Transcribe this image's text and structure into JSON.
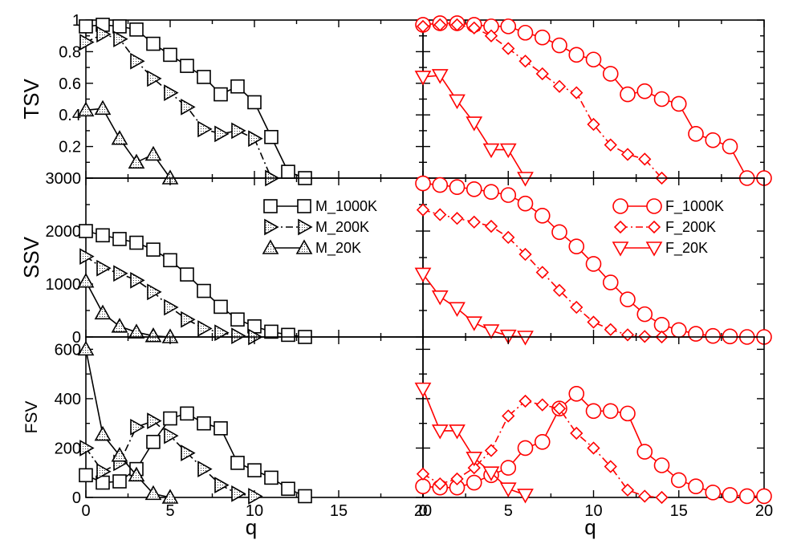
{
  "chart_data": [
    {
      "panel": "left-top",
      "type": "line",
      "ylabel": "TSV",
      "xlabel": "",
      "xlim": [
        0,
        20
      ],
      "ylim": [
        0,
        1
      ],
      "yticks": [
        "0.2",
        "0.4",
        "0.6",
        "0.8",
        "1"
      ],
      "xticks": [],
      "series": [
        {
          "name": "M_1000K",
          "marker": "square",
          "dash": "solid",
          "color": "#000000",
          "x": [
            0,
            1,
            2,
            3,
            4,
            5,
            6,
            7,
            8,
            9,
            10,
            11,
            12,
            13
          ],
          "y": [
            0.96,
            0.97,
            0.96,
            0.94,
            0.85,
            0.78,
            0.71,
            0.64,
            0.53,
            0.58,
            0.48,
            0.26,
            0.04,
            0.0
          ]
        },
        {
          "name": "M_200K",
          "marker": "triangle-right",
          "dash": "dashdot",
          "color": "#000000",
          "x": [
            0,
            1,
            2,
            3,
            4,
            5,
            6,
            7,
            8,
            9,
            10,
            11
          ],
          "y": [
            0.86,
            0.91,
            0.88,
            0.74,
            0.63,
            0.54,
            0.45,
            0.31,
            0.28,
            0.3,
            0.25,
            0.0
          ]
        },
        {
          "name": "M_20K",
          "marker": "triangle-up",
          "dash": "solid",
          "color": "#000000",
          "x": [
            0,
            1,
            2,
            3,
            4,
            5
          ],
          "y": [
            0.43,
            0.44,
            0.25,
            0.1,
            0.15,
            0.0
          ]
        }
      ]
    },
    {
      "panel": "right-top",
      "type": "line",
      "ylabel": "",
      "xlabel": "",
      "xlim": [
        0,
        20
      ],
      "ylim": [
        0,
        1
      ],
      "yticks": [],
      "xticks": [],
      "series": [
        {
          "name": "F_1000K",
          "marker": "circle",
          "dash": "solid",
          "color": "#ff0000",
          "x": [
            0,
            1,
            2,
            3,
            4,
            5,
            6,
            7,
            8,
            9,
            10,
            11,
            12,
            13,
            14,
            15,
            16,
            17,
            18,
            19,
            20
          ],
          "y": [
            0.97,
            0.98,
            0.98,
            0.97,
            0.96,
            0.96,
            0.92,
            0.89,
            0.84,
            0.78,
            0.75,
            0.66,
            0.53,
            0.55,
            0.5,
            0.47,
            0.28,
            0.24,
            0.2,
            0.0,
            0.0
          ]
        },
        {
          "name": "F_200K",
          "marker": "diamond",
          "dash": "dashdot",
          "color": "#ff0000",
          "x": [
            0,
            1,
            2,
            3,
            4,
            5,
            6,
            7,
            8,
            9,
            10,
            11,
            12,
            13,
            14
          ],
          "y": [
            0.96,
            0.97,
            0.97,
            0.95,
            0.9,
            0.82,
            0.74,
            0.66,
            0.58,
            0.54,
            0.34,
            0.21,
            0.15,
            0.12,
            0.0
          ]
        },
        {
          "name": "F_20K",
          "marker": "triangle-down",
          "dash": "solid",
          "color": "#ff0000",
          "x": [
            0,
            1,
            2,
            3,
            4,
            5,
            6
          ],
          "y": [
            0.64,
            0.65,
            0.49,
            0.35,
            0.18,
            0.18,
            0.0
          ]
        }
      ]
    },
    {
      "panel": "left-middle",
      "type": "line",
      "ylabel": "SSV",
      "xlabel": "",
      "xlim": [
        0,
        20
      ],
      "ylim": [
        0,
        3000
      ],
      "yticks": [
        "0",
        "1000",
        "2000",
        "3000"
      ],
      "xticks": [],
      "series": [
        {
          "name": "M_1000K",
          "marker": "square",
          "dash": "solid",
          "color": "#000000",
          "x": [
            0,
            1,
            2,
            3,
            4,
            5,
            6,
            7,
            8,
            9,
            10,
            11,
            12,
            13
          ],
          "y": [
            2000,
            1920,
            1850,
            1780,
            1650,
            1450,
            1180,
            870,
            570,
            330,
            200,
            100,
            40,
            0
          ]
        },
        {
          "name": "M_200K",
          "marker": "triangle-right",
          "dash": "dashdot",
          "color": "#000000",
          "x": [
            0,
            1,
            2,
            3,
            4,
            5,
            6,
            7,
            8,
            9,
            10
          ],
          "y": [
            1520,
            1300,
            1200,
            1070,
            850,
            560,
            330,
            160,
            80,
            20,
            0
          ]
        },
        {
          "name": "M_20K",
          "marker": "triangle-up",
          "dash": "solid",
          "color": "#000000",
          "x": [
            0,
            1,
            2,
            3,
            4,
            5
          ],
          "y": [
            1050,
            450,
            200,
            90,
            20,
            0
          ]
        }
      ]
    },
    {
      "panel": "right-middle",
      "type": "line",
      "ylabel": "",
      "xlabel": "",
      "xlim": [
        0,
        20
      ],
      "ylim": [
        0,
        3000
      ],
      "yticks": [],
      "xticks": [],
      "series": [
        {
          "name": "F_1000K",
          "marker": "circle",
          "dash": "solid",
          "color": "#ff0000",
          "x": [
            0,
            1,
            2,
            3,
            4,
            5,
            6,
            7,
            8,
            9,
            10,
            11,
            12,
            13,
            14,
            15,
            16,
            17,
            18,
            19,
            20
          ],
          "y": [
            2900,
            2870,
            2830,
            2790,
            2740,
            2680,
            2520,
            2290,
            1980,
            1710,
            1380,
            1030,
            710,
            430,
            230,
            130,
            60,
            20,
            10,
            0,
            0
          ]
        },
        {
          "name": "F_200K",
          "marker": "diamond",
          "dash": "dashdot",
          "color": "#ff0000",
          "x": [
            0,
            1,
            2,
            3,
            4,
            5,
            6,
            7,
            8,
            9,
            10,
            11,
            12,
            13,
            14
          ],
          "y": [
            2400,
            2310,
            2240,
            2170,
            2090,
            1880,
            1560,
            1220,
            880,
            560,
            280,
            140,
            40,
            10,
            0
          ]
        },
        {
          "name": "F_20K",
          "marker": "triangle-down",
          "dash": "solid",
          "color": "#ff0000",
          "x": [
            0,
            1,
            2,
            3,
            4,
            5,
            6
          ],
          "y": [
            1190,
            760,
            540,
            270,
            120,
            20,
            0
          ]
        }
      ]
    },
    {
      "panel": "left-bottom",
      "type": "line",
      "ylabel": "FSV",
      "xlabel": "q",
      "xlim": [
        0,
        20
      ],
      "ylim": [
        0,
        650
      ],
      "yticks": [
        "0",
        "200",
        "400",
        "600"
      ],
      "xticks": [
        "0",
        "5",
        "10",
        "15",
        "20"
      ],
      "series": [
        {
          "name": "M_1000K",
          "marker": "square",
          "dash": "solid",
          "color": "#000000",
          "x": [
            0,
            1,
            2,
            3,
            4,
            5,
            6,
            7,
            8,
            9,
            10,
            11,
            12,
            13
          ],
          "y": [
            90,
            60,
            65,
            115,
            225,
            320,
            340,
            300,
            280,
            140,
            110,
            80,
            35,
            5
          ]
        },
        {
          "name": "M_200K",
          "marker": "triangle-right",
          "dash": "dashdot",
          "color": "#000000",
          "x": [
            0,
            1,
            2,
            3,
            4,
            5,
            6,
            7,
            8,
            9,
            10
          ],
          "y": [
            200,
            105,
            140,
            285,
            310,
            250,
            180,
            115,
            50,
            15,
            5
          ]
        },
        {
          "name": "M_20K",
          "marker": "triangle-up",
          "dash": "solid",
          "color": "#000000",
          "x": [
            0,
            1,
            2,
            3,
            4,
            5
          ],
          "y": [
            600,
            255,
            170,
            90,
            15,
            0
          ]
        }
      ]
    },
    {
      "panel": "right-bottom",
      "type": "line",
      "ylabel": "",
      "xlabel": "q",
      "xlim": [
        0,
        20
      ],
      "ylim": [
        0,
        650
      ],
      "yticks": [],
      "xticks": [
        "0",
        "5",
        "10",
        "15",
        "20"
      ],
      "series": [
        {
          "name": "F_1000K",
          "marker": "circle",
          "dash": "solid",
          "color": "#ff0000",
          "x": [
            0,
            1,
            2,
            3,
            4,
            5,
            6,
            7,
            8,
            9,
            10,
            11,
            12,
            13,
            14,
            15,
            16,
            17,
            18,
            19,
            20
          ],
          "y": [
            45,
            40,
            40,
            60,
            90,
            120,
            200,
            225,
            360,
            420,
            350,
            350,
            340,
            185,
            130,
            70,
            45,
            20,
            10,
            5,
            5
          ]
        },
        {
          "name": "F_200K",
          "marker": "diamond",
          "dash": "dashdot",
          "color": "#ff0000",
          "x": [
            0,
            1,
            2,
            3,
            4,
            5,
            6,
            7,
            8,
            9,
            10,
            11,
            12,
            13,
            14
          ],
          "y": [
            95,
            55,
            75,
            120,
            190,
            330,
            390,
            375,
            360,
            260,
            200,
            125,
            30,
            5,
            0
          ]
        },
        {
          "name": "F_20K",
          "marker": "triangle-down",
          "dash": "solid",
          "color": "#ff0000",
          "x": [
            0,
            1,
            2,
            3,
            4,
            5,
            6
          ],
          "y": [
            440,
            270,
            270,
            160,
            100,
            35,
            10
          ]
        }
      ]
    }
  ],
  "legend_left": [
    "M_1000K",
    "M_200K",
    "M_20K"
  ],
  "legend_right": [
    "F_1000K",
    "F_200K",
    "F_20K"
  ]
}
